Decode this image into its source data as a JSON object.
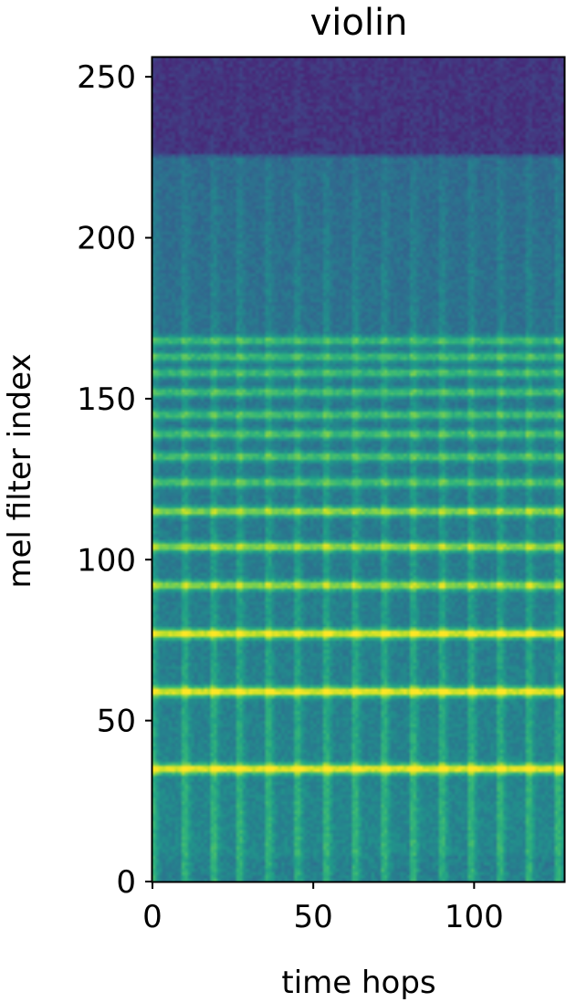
{
  "chart_data": {
    "type": "heatmap",
    "title": "violin",
    "xlabel": "time hops",
    "ylabel": "mel filter index",
    "x_range": [
      0,
      128
    ],
    "y_range": [
      0,
      256
    ],
    "x_ticks": [
      0,
      50,
      100
    ],
    "y_ticks": [
      0,
      50,
      100,
      150,
      200,
      250
    ],
    "x_tick_labels": [
      "0",
      "50",
      "100"
    ],
    "y_tick_labels": [
      "0",
      "50",
      "100",
      "150",
      "200",
      "250"
    ],
    "colormap": "viridis",
    "harmonic_bands_mel_index": [
      35,
      59,
      77,
      92,
      104,
      115,
      124,
      132,
      139,
      145,
      152,
      158,
      163,
      168
    ],
    "note_onsets_time_hop": [
      0,
      10,
      19,
      27,
      36,
      45,
      54,
      63,
      72,
      81,
      90,
      99,
      108,
      117,
      126
    ],
    "grid": false,
    "legend": "none"
  }
}
